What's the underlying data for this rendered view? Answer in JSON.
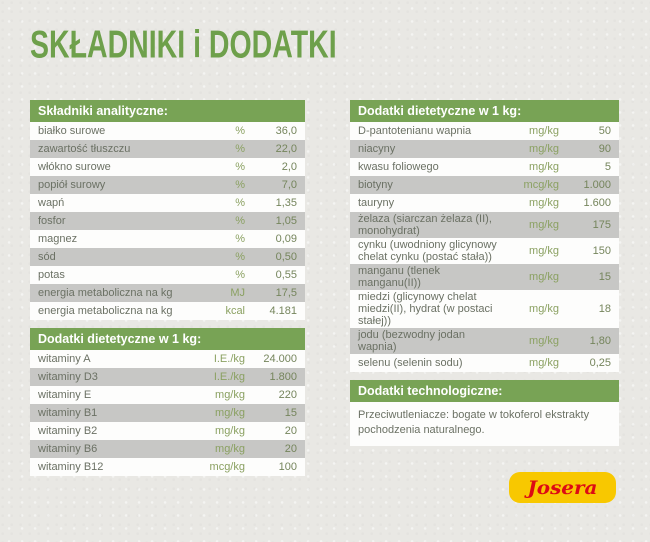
{
  "page": {
    "title": "SKŁADNIKI i DODATKI",
    "brand": "Josera"
  },
  "colors": {
    "accent_green": "#78a355",
    "title_green": "#6ea04b",
    "row_alt_gray": "#c7c7c5",
    "background": "#e9e8e4",
    "logo_yellow": "#f8c800",
    "logo_red": "#dd0a14"
  },
  "tables": {
    "analytical": {
      "header": "Składniki analityczne:",
      "rows": [
        {
          "label": "białko surowe",
          "unit": "%",
          "value": "36,0"
        },
        {
          "label": "zawartość tłuszczu",
          "unit": "%",
          "value": "22,0"
        },
        {
          "label": "włókno surowe",
          "unit": "%",
          "value": "2,0"
        },
        {
          "label": "popiół surowy",
          "unit": "%",
          "value": "7,0"
        },
        {
          "label": "wapń",
          "unit": "%",
          "value": "1,35"
        },
        {
          "label": "fosfor",
          "unit": "%",
          "value": "1,05"
        },
        {
          "label": "magnez",
          "unit": "%",
          "value": "0,09"
        },
        {
          "label": "sód",
          "unit": "%",
          "value": "0,50"
        },
        {
          "label": "potas",
          "unit": "%",
          "value": "0,55"
        },
        {
          "label": "energia metaboliczna na kg",
          "unit": "MJ",
          "value": "17,5"
        },
        {
          "label": "energia metaboliczna na kg",
          "unit": "kcal",
          "value": "4.181"
        }
      ]
    },
    "dietary_left": {
      "header": "Dodatki dietetyczne w 1 kg:",
      "rows": [
        {
          "label": "witaminy A",
          "unit": "I.E./kg",
          "value": "24.000"
        },
        {
          "label": "witaminy D3",
          "unit": "I.E./kg",
          "value": "1.800"
        },
        {
          "label": "witaminy E",
          "unit": "mg/kg",
          "value": "220"
        },
        {
          "label": "witaminy B1",
          "unit": "mg/kg",
          "value": "15"
        },
        {
          "label": "witaminy B2",
          "unit": "mg/kg",
          "value": "20"
        },
        {
          "label": "witaminy B6",
          "unit": "mg/kg",
          "value": "20"
        },
        {
          "label": "witaminy B12",
          "unit": "mcg/kg",
          "value": "100"
        }
      ]
    },
    "dietary_right": {
      "header": "Dodatki dietetyczne w 1 kg:",
      "rows": [
        {
          "label": "D-pantotenianu wapnia",
          "unit": "mg/kg",
          "value": "50"
        },
        {
          "label": "niacyny",
          "unit": "mg/kg",
          "value": "90"
        },
        {
          "label": "kwasu foliowego",
          "unit": "mg/kg",
          "value": "5"
        },
        {
          "label": "biotyny",
          "unit": "mcg/kg",
          "value": "1.000"
        },
        {
          "label": "tauryny",
          "unit": "mg/kg",
          "value": "1.600"
        },
        {
          "label": "żelaza (siarczan żelaza (II), monohydrat)",
          "unit": "mg/kg",
          "value": "175"
        },
        {
          "label": "cynku (uwodniony glicynowy chelat cynku (postać stała))",
          "unit": "mg/kg",
          "value": "150"
        },
        {
          "label": "manganu (tlenek manganu(II))",
          "unit": "mg/kg",
          "value": "15"
        },
        {
          "label": "miedzi (glicynowy chelat miedzi(II), hydrat (w postaci stałej))",
          "unit": "mg/kg",
          "value": "18"
        },
        {
          "label": "jodu (bezwodny jodan wapnia)",
          "unit": "mg/kg",
          "value": "1,80"
        },
        {
          "label": "selenu (selenin sodu)",
          "unit": "mg/kg",
          "value": "0,25"
        }
      ]
    },
    "technological": {
      "header": "Dodatki technologiczne:",
      "text": "Przeciwutleniacze: bogate w tokoferol ekstrakty pochodzenia naturalnego."
    }
  }
}
